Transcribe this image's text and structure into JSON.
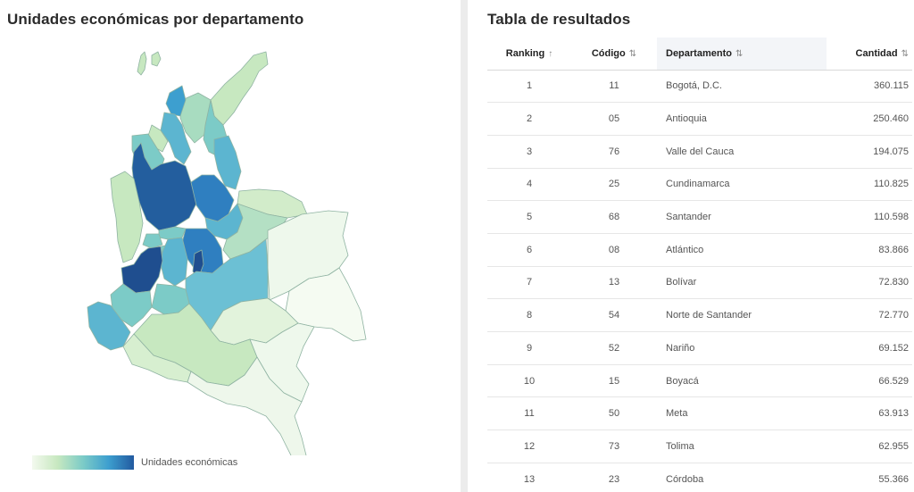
{
  "map_panel": {
    "title": "Unidades económicas por departamento",
    "legend_label": "Unidades económicas",
    "colors": {
      "lightest": "#f3f9ee",
      "light_green": "#c7e8c0",
      "teal": "#7ccbc7",
      "blue": "#3d9fcf",
      "darkest": "#225aa0"
    }
  },
  "table_panel": {
    "title": "Tabla de resultados",
    "columns": {
      "ranking": "Ranking",
      "codigo": "Código",
      "departamento": "Departamento",
      "cantidad": "Cantidad"
    },
    "sort_icons": {
      "ranking": "↑",
      "codigo": "⇅",
      "departamento": "⇅",
      "cantidad": "⇅"
    },
    "rows": [
      {
        "ranking": "1",
        "codigo": "11",
        "departamento": "Bogotá, D.C.",
        "cantidad": "360.115"
      },
      {
        "ranking": "2",
        "codigo": "05",
        "departamento": "Antioquia",
        "cantidad": "250.460"
      },
      {
        "ranking": "3",
        "codigo": "76",
        "departamento": "Valle del Cauca",
        "cantidad": "194.075"
      },
      {
        "ranking": "4",
        "codigo": "25",
        "departamento": "Cundinamarca",
        "cantidad": "110.825"
      },
      {
        "ranking": "5",
        "codigo": "68",
        "departamento": "Santander",
        "cantidad": "110.598"
      },
      {
        "ranking": "6",
        "codigo": "08",
        "departamento": "Atlántico",
        "cantidad": "83.866"
      },
      {
        "ranking": "7",
        "codigo": "13",
        "departamento": "Bolívar",
        "cantidad": "72.830"
      },
      {
        "ranking": "8",
        "codigo": "54",
        "departamento": "Norte de Santander",
        "cantidad": "72.770"
      },
      {
        "ranking": "9",
        "codigo": "52",
        "departamento": "Nariño",
        "cantidad": "69.152"
      },
      {
        "ranking": "10",
        "codigo": "15",
        "departamento": "Boyacá",
        "cantidad": "66.529"
      },
      {
        "ranking": "11",
        "codigo": "50",
        "departamento": "Meta",
        "cantidad": "63.913"
      },
      {
        "ranking": "12",
        "codigo": "73",
        "departamento": "Tolima",
        "cantidad": "62.955"
      },
      {
        "ranking": "13",
        "codigo": "23",
        "departamento": "Córdoba",
        "cantidad": "55.366"
      }
    ]
  }
}
